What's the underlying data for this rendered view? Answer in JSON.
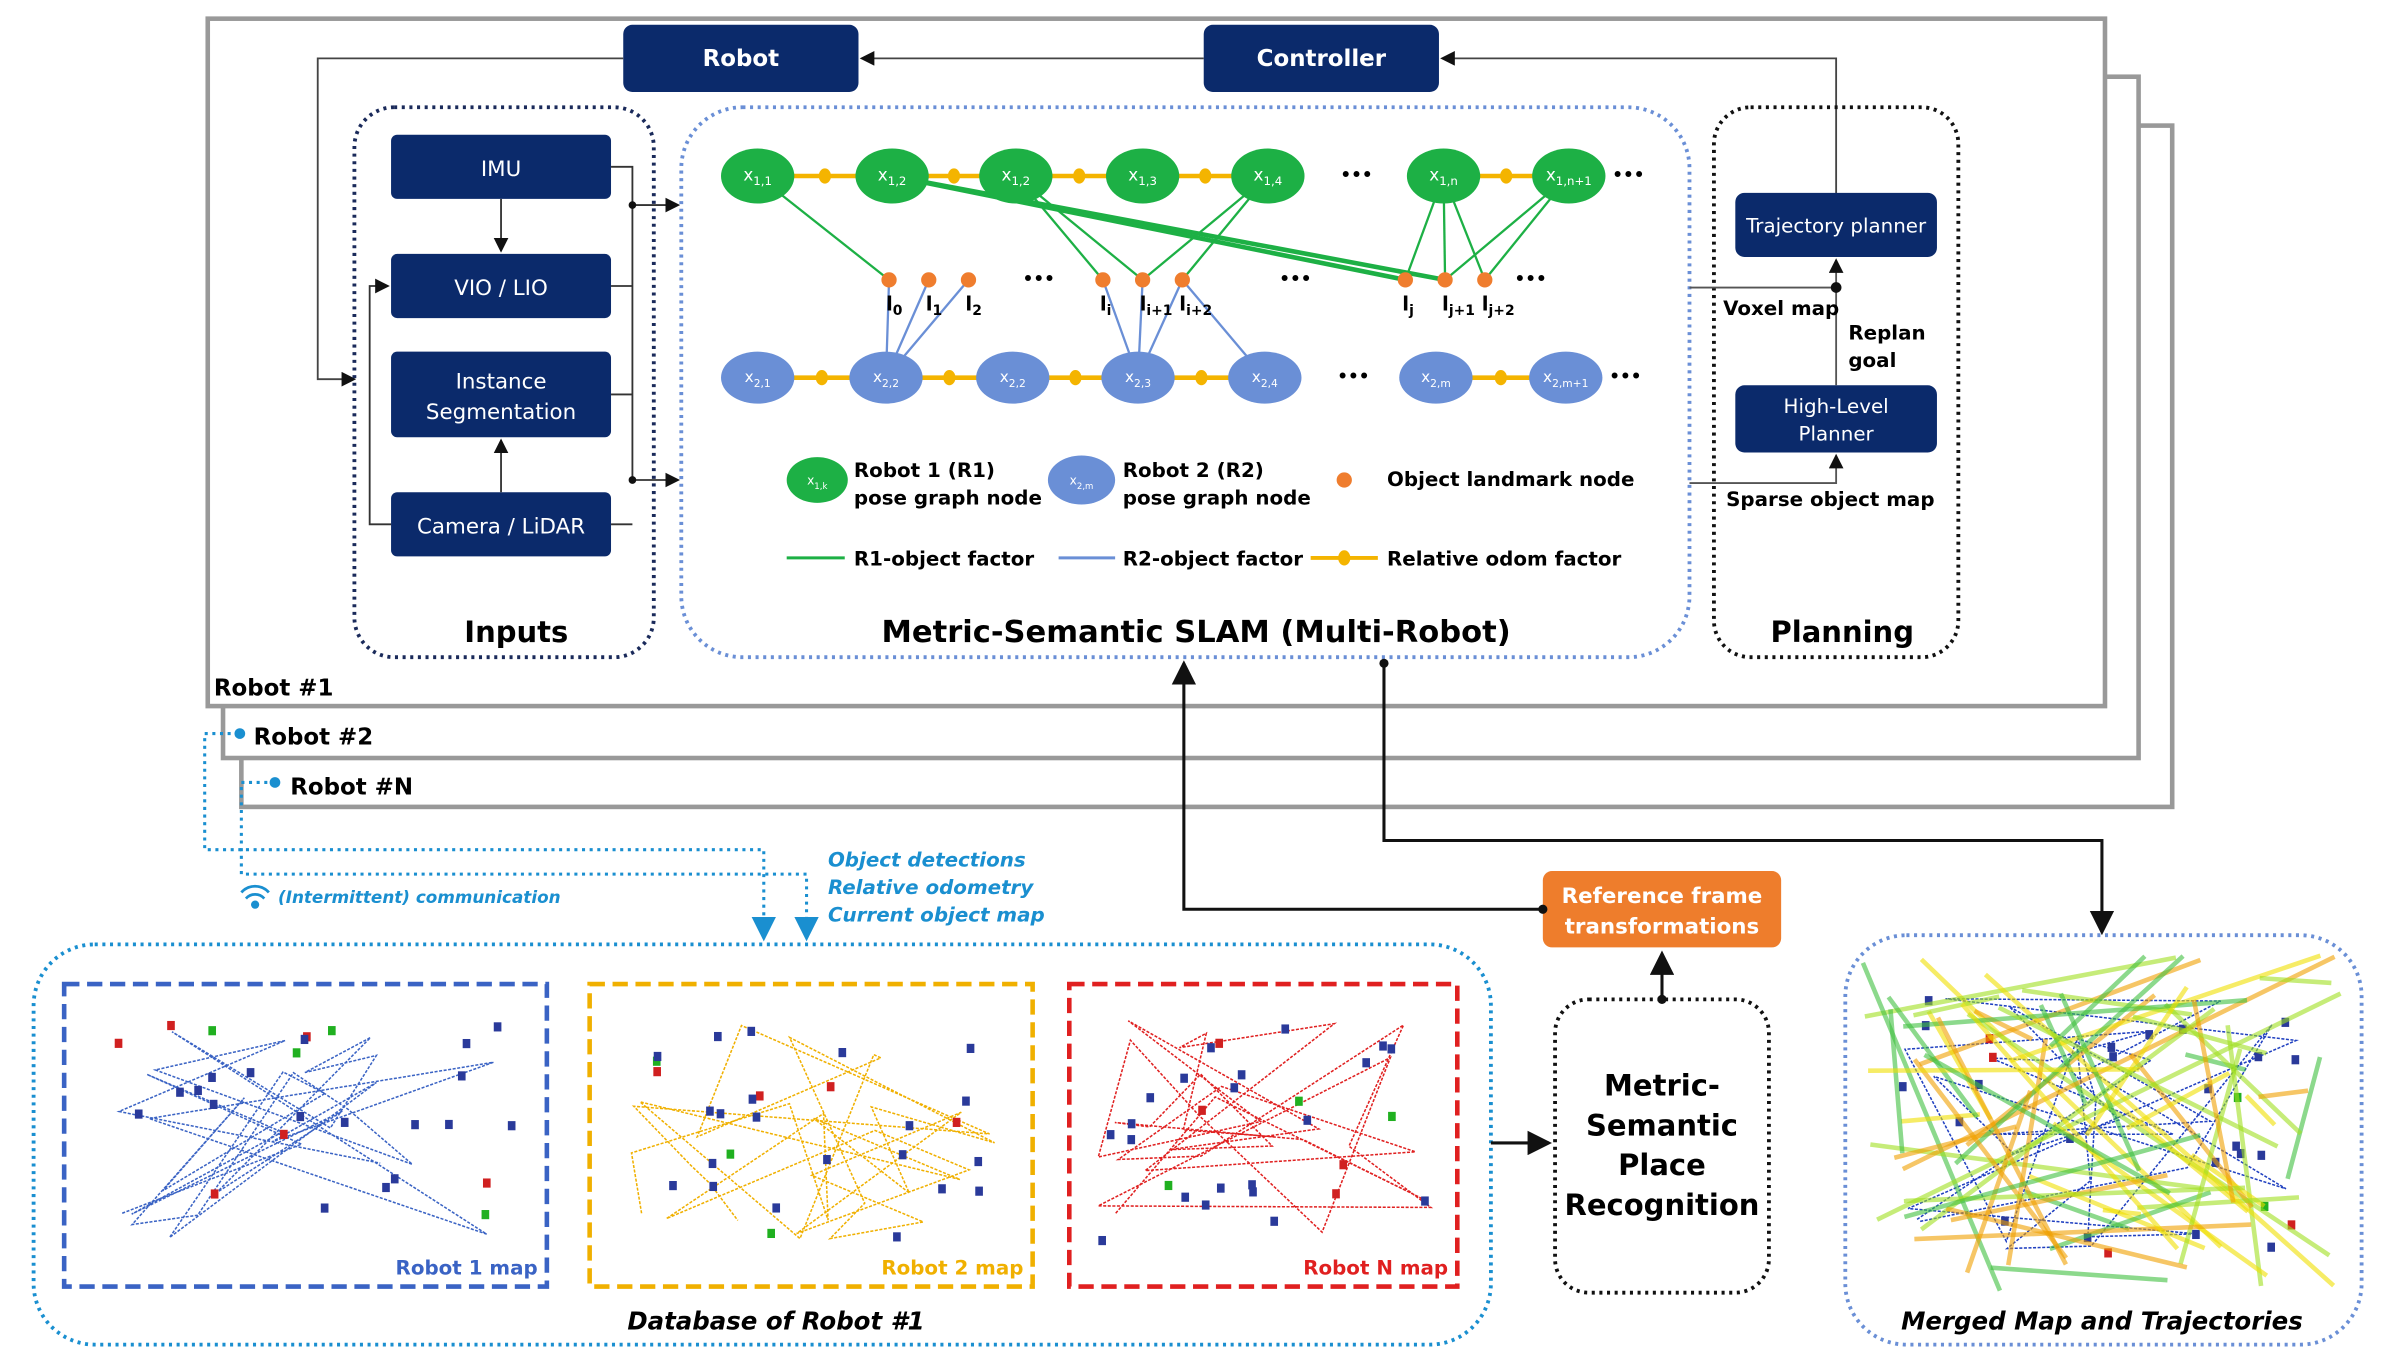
{
  "colors": {
    "navy": "#0b2a6b",
    "r1_green": "#1db045",
    "r2_blue": "#6a8fd6",
    "landmark_orange": "#ef7d2e",
    "odom_yellow": "#f4b400",
    "comm_blue": "#1a8fd0",
    "ref_orange": "#ee7d2c",
    "robot1_map": "#3a63c4",
    "robot2_map": "#f0b000",
    "robotN_map": "#e02020"
  },
  "top": {
    "robot": "Robot",
    "controller": "Controller"
  },
  "inputs": {
    "title": "Inputs",
    "imu": "IMU",
    "vio": "VIO / LIO",
    "seg_line1": "Instance",
    "seg_line2": "Segmentation",
    "camera": "Camera / LiDAR"
  },
  "slam": {
    "title": "Metric-Semantic SLAM (Multi-Robot)",
    "r1_nodes": [
      {
        "base": "x",
        "sub": "1,1"
      },
      {
        "base": "x",
        "sub": "1,2"
      },
      {
        "base": "x",
        "sub": "1,2"
      },
      {
        "base": "x",
        "sub": "1,3"
      },
      {
        "base": "x",
        "sub": "1,4"
      },
      {
        "base": "x",
        "sub": "1,n"
      },
      {
        "base": "x",
        "sub": "1,n+1"
      }
    ],
    "r2_nodes": [
      {
        "base": "x",
        "sub": "2,1"
      },
      {
        "base": "x",
        "sub": "2,2"
      },
      {
        "base": "x",
        "sub": "2,2"
      },
      {
        "base": "x",
        "sub": "2,3"
      },
      {
        "base": "x",
        "sub": "2,4"
      },
      {
        "base": "x",
        "sub": "2,m"
      },
      {
        "base": "x",
        "sub": "2,m+1"
      }
    ],
    "landmarks": [
      {
        "base": "l",
        "sub": "0"
      },
      {
        "base": "l",
        "sub": "1"
      },
      {
        "base": "l",
        "sub": "2"
      },
      {
        "base": "l",
        "sub": "i"
      },
      {
        "base": "l",
        "sub": "i+1"
      },
      {
        "base": "l",
        "sub": "i+2"
      },
      {
        "base": "l",
        "sub": "j"
      },
      {
        "base": "l",
        "sub": "j+1"
      },
      {
        "base": "l",
        "sub": "j+2"
      }
    ],
    "r1_factors": [
      [
        0,
        0
      ],
      [
        1,
        6
      ],
      [
        1,
        7
      ],
      [
        2,
        3
      ],
      [
        2,
        4
      ],
      [
        4,
        4
      ],
      [
        4,
        5
      ],
      [
        5,
        6
      ],
      [
        5,
        7
      ],
      [
        5,
        8
      ],
      [
        6,
        7
      ],
      [
        6,
        8
      ]
    ],
    "r2_factors": [
      [
        1,
        0
      ],
      [
        1,
        1
      ],
      [
        1,
        2
      ],
      [
        3,
        3
      ],
      [
        3,
        4
      ],
      [
        3,
        5
      ],
      [
        4,
        5
      ]
    ],
    "ellipsis": "•••",
    "legend": {
      "r1_node_sample": {
        "base": "x",
        "sub": "1,k"
      },
      "r1_line1": "Robot 1 (R1)",
      "r1_line2": "pose graph node",
      "r2_node_sample": {
        "base": "x",
        "sub": "2,m"
      },
      "r2_line1": "Robot 2 (R2)",
      "r2_line2": "pose graph node",
      "landmark": "Object landmark node",
      "r1_factor": "R1-object factor",
      "r2_factor": "R2-object factor",
      "odom_factor": "Relative odom factor"
    }
  },
  "planning": {
    "title": "Planning",
    "trajectory": "Trajectory planner",
    "voxel_map": "Voxel map",
    "replan_line1": "Replan",
    "replan_line2": "goal",
    "hl_line1": "High-Level",
    "hl_line2": "Planner",
    "sparse_map": "Sparse object map"
  },
  "robots": {
    "r1": "Robot #1",
    "r2": "Robot #2",
    "rN": "Robot #N"
  },
  "comm": {
    "label": "(Intermittent) communication",
    "items": [
      "Object detections",
      "Relative odometry",
      "Current object map"
    ]
  },
  "database": {
    "title": "Database of Robot #1",
    "maps": [
      "Robot 1 map",
      "Robot 2 map",
      "Robot N map"
    ]
  },
  "place_recognition": {
    "lines": [
      "Metric-",
      "Semantic",
      "Place",
      "Recognition"
    ]
  },
  "ref_frame": {
    "line1": "Reference frame",
    "line2": "transformations"
  },
  "merged": {
    "title": "Merged Map and Trajectories"
  }
}
